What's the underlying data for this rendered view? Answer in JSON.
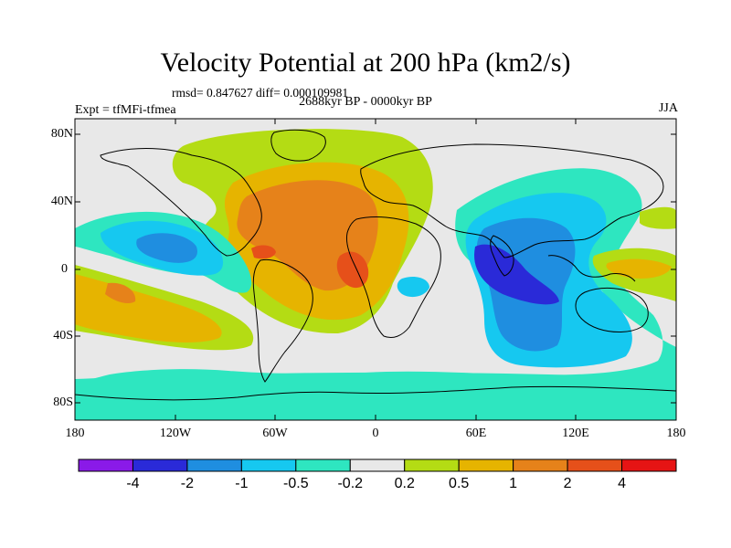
{
  "title": "Velocity Potential at 200 hPa (km2/s)",
  "stats": "rmsd= 0.847627 diff= 0.000109981",
  "period": "2688kyr BP - 0000kyr BP",
  "experiment": "Expt = tfMFi-tfmea",
  "season": "JJA",
  "lat_labels": [
    "80N",
    "40N",
    "0",
    "40S",
    "80S"
  ],
  "lon_labels": [
    "180",
    "120W",
    "60W",
    "0",
    "60E",
    "120E",
    "180"
  ],
  "colorbar": {
    "labels": [
      "-4",
      "-2",
      "-1",
      "-0.5",
      "-0.2",
      "0.2",
      "0.5",
      "1",
      "2",
      "4"
    ],
    "colors": [
      "#8a1ae8",
      "#2a2ad8",
      "#1f8ee0",
      "#16c8f0",
      "#2ee6c0",
      "#e8e8e8",
      "#b4dc14",
      "#e6b400",
      "#e6821a",
      "#e6501a",
      "#e61414"
    ]
  }
}
